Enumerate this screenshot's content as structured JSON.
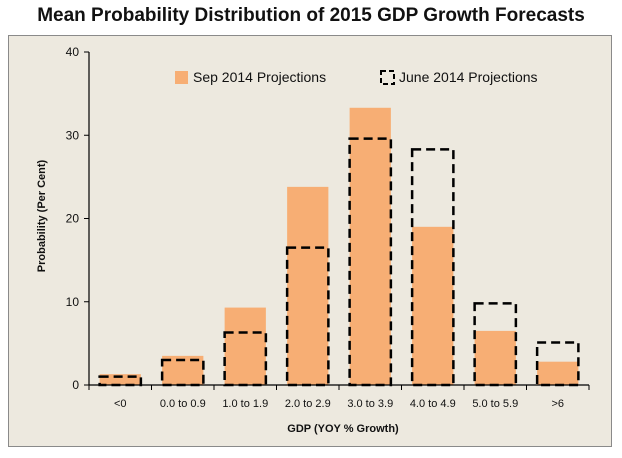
{
  "chart_data": {
    "type": "bar",
    "title": "Mean Probability Distribution of 2015 GDP Growth Forecasts",
    "xlabel": "GDP (YOY % Growth)",
    "ylabel": "Probability (Per Cent)",
    "ylim": [
      0,
      40
    ],
    "yticks": [
      "0",
      "10",
      "20",
      "30",
      "40"
    ],
    "categories": [
      "<0",
      "0.0 to 0.9",
      "1.0 to 1.9",
      "2.0 to 2.9",
      "3.0 to 3.9",
      "4.0 to 4.9",
      "5.0 to 5.9",
      ">6"
    ],
    "series": [
      {
        "name": "Sep 2014 Projections",
        "style": "filled",
        "color": "#f7ae74",
        "values": [
          1.3,
          3.5,
          9.3,
          23.8,
          33.3,
          19.0,
          6.5,
          2.8
        ]
      },
      {
        "name": "June 2014 Projections",
        "style": "dashed-outline",
        "color": "#000000",
        "values": [
          1.0,
          3.0,
          6.3,
          16.5,
          29.6,
          28.3,
          9.8,
          5.1
        ]
      }
    ],
    "legend_position": "top-right",
    "grid": false
  }
}
